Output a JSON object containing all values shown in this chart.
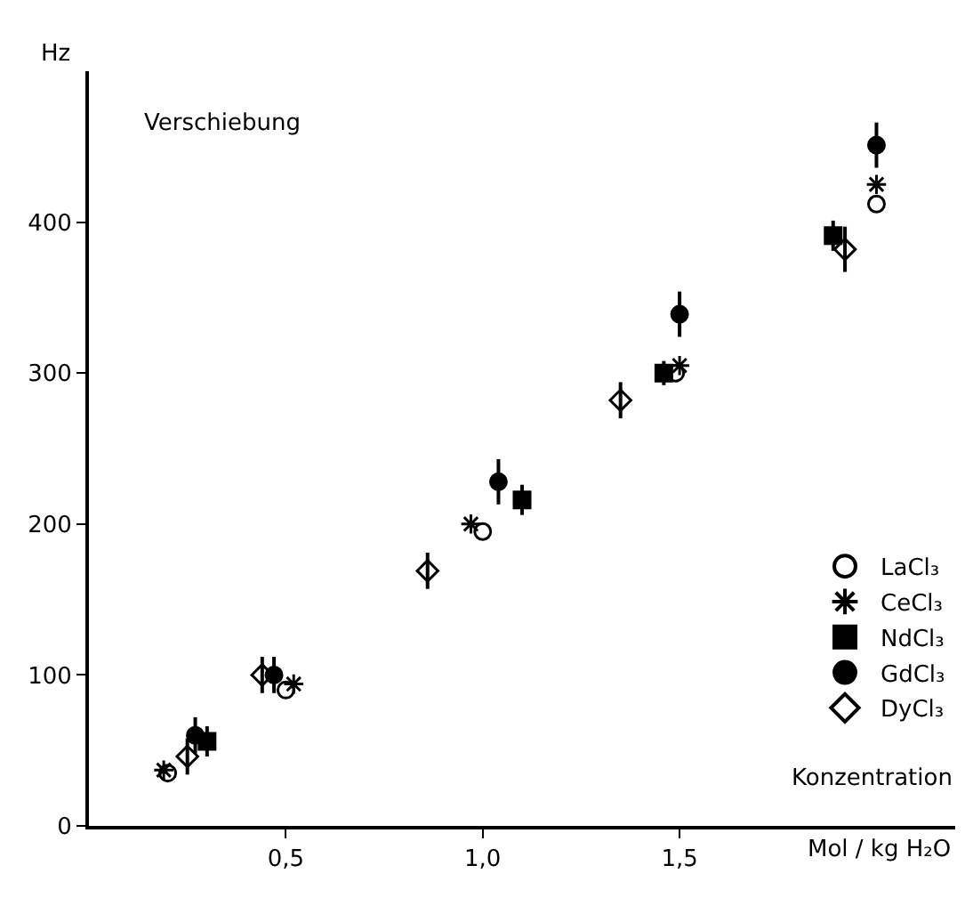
{
  "chart_data": {
    "type": "scatter",
    "xlabel": "Mol / kg H₂O",
    "ylabel": "Hz",
    "annotations": [
      "Verschiebung",
      "Konzentration"
    ],
    "xlim": [
      0,
      2.2
    ],
    "ylim": [
      0,
      500
    ],
    "xticks": [
      {
        "value": 0.5,
        "label": "0,5"
      },
      {
        "value": 1.0,
        "label": "1,0"
      },
      {
        "value": 1.5,
        "label": "1,5"
      }
    ],
    "yticks": [
      0,
      100,
      200,
      300,
      400
    ],
    "legend": "bottom right",
    "series": [
      {
        "name": "LaCl₃",
        "color": "#000000",
        "marker": "circle",
        "x": [
          0.2,
          0.5,
          1.0,
          1.49,
          2.0
        ],
        "values": [
          35,
          90,
          195,
          300,
          412
        ]
      },
      {
        "name": "CeCl₃",
        "color": "#000000",
        "marker": "cross",
        "x": [
          0.19,
          0.52,
          0.97,
          1.5,
          2.0
        ],
        "values": [
          37,
          94,
          200,
          305,
          425
        ]
      },
      {
        "name": "NdCl₃",
        "color": "#000000",
        "marker": "square",
        "x": [
          0.3,
          1.1,
          1.46,
          1.89
        ],
        "values": [
          56,
          216,
          300,
          391
        ],
        "errors": [
          10,
          10,
          8,
          10
        ]
      },
      {
        "name": "GdCl₃",
        "color": "#000000",
        "marker": "circle",
        "x": [
          0.27,
          0.47,
          1.04,
          1.5,
          2.0
        ],
        "values": [
          60,
          100,
          228,
          339,
          451
        ],
        "errors": [
          12,
          12,
          15,
          15,
          15
        ]
      },
      {
        "name": "DyCl₃",
        "color": "#000000",
        "marker": "diamond",
        "x": [
          0.25,
          0.44,
          0.86,
          1.35,
          1.92
        ],
        "values": [
          46,
          100,
          169,
          282,
          382
        ],
        "errors": [
          12,
          12,
          12,
          12,
          15
        ]
      }
    ]
  }
}
